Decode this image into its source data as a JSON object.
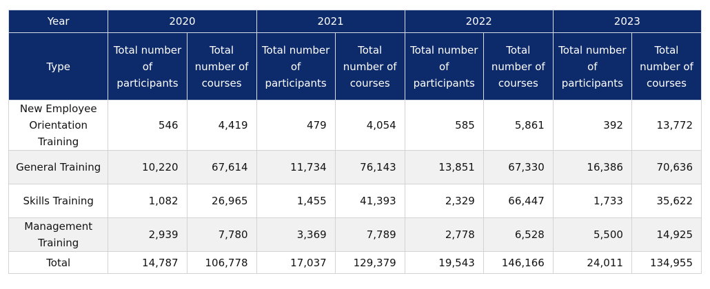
{
  "table": {
    "header": {
      "year_label": "Year",
      "type_label": "Type",
      "years": [
        "2020",
        "2021",
        "2022",
        "2023"
      ],
      "participants_label": "Total number of participants",
      "courses_label": "Total number of courses"
    },
    "rows": [
      {
        "type": "New Employee Orientation Training",
        "values": [
          "546",
          "4,419",
          "479",
          "4,054",
          "585",
          "5,861",
          "392",
          "13,772"
        ]
      },
      {
        "type": "General Training",
        "values": [
          "10,220",
          "67,614",
          "11,734",
          "76,143",
          "13,851",
          "67,330",
          "16,386",
          "70,636"
        ]
      },
      {
        "type": "Skills Training",
        "values": [
          "1,082",
          "26,965",
          "1,455",
          "41,393",
          "2,329",
          "66,447",
          "1,733",
          "35,622"
        ]
      },
      {
        "type": "Management Training",
        "values": [
          "2,939",
          "7,780",
          "3,369",
          "7,789",
          "2,778",
          "6,528",
          "5,500",
          "14,925"
        ]
      },
      {
        "type": "Total",
        "values": [
          "14,787",
          "106,778",
          "17,037",
          "129,379",
          "19,543",
          "146,166",
          "24,011",
          "134,955"
        ]
      }
    ]
  }
}
